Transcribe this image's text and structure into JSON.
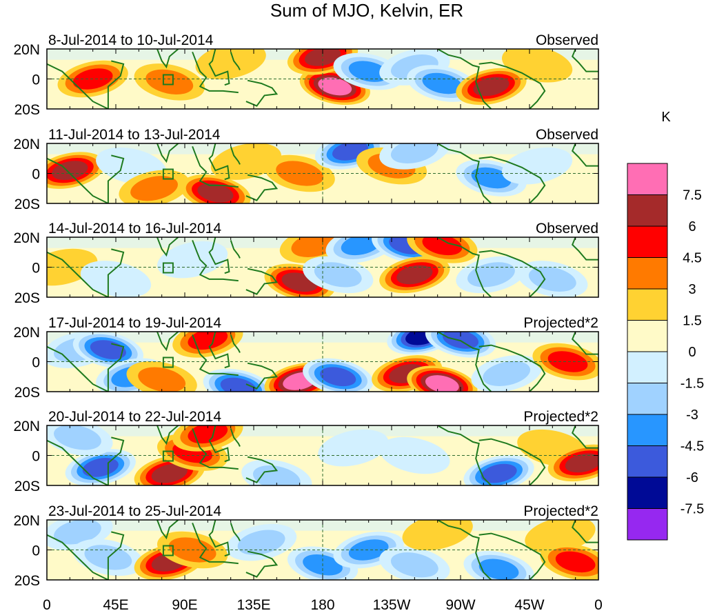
{
  "chart_data": {
    "type": "heatmap",
    "title": "Sum of MJO, Kelvin, ER",
    "units": "K",
    "xlabel": "",
    "ylabel": "",
    "x_ticks": [
      "0",
      "45E",
      "90E",
      "135E",
      "180",
      "135W",
      "90W",
      "45W",
      "0"
    ],
    "y_ticks": [
      "20N",
      "0",
      "20S"
    ],
    "colorbar": {
      "labels": [
        "7.5",
        "6",
        "4.5",
        "3",
        "1.5",
        "0",
        "-1.5",
        "-3",
        "-4.5",
        "-6",
        "-7.5"
      ],
      "colors": [
        "#ff6eb4",
        "#a52a2a",
        "#ff0000",
        "#ff7a00",
        "#ffd232",
        "#fffac8",
        "#d2f0ff",
        "#a0d2ff",
        "#2896ff",
        "#3c5adc",
        "#000a96",
        "#9628f0"
      ]
    },
    "panels": [
      {
        "date_range": "8-Jul-2014 to 10-Jul-2014",
        "label": "Observed",
        "blobs": [
          {
            "lon": 30,
            "lat": 0,
            "value": 4.5
          },
          {
            "lon": 80,
            "lat": -2,
            "value": 3
          },
          {
            "lon": 120,
            "lat": 12,
            "value": 1.5
          },
          {
            "lon": 188,
            "lat": -5,
            "value": 7.5
          },
          {
            "lon": 180,
            "lat": 15,
            "value": 6
          },
          {
            "lon": 210,
            "lat": 5,
            "value": -4.5
          },
          {
            "lon": 240,
            "lat": 8,
            "value": -3
          },
          {
            "lon": 258,
            "lat": -3,
            "value": -4.5
          },
          {
            "lon": 290,
            "lat": -5,
            "value": 6
          },
          {
            "lon": 320,
            "lat": 10,
            "value": 1.5
          }
        ]
      },
      {
        "date_range": "11-Jul-2014 to 13-Jul-2014",
        "label": "Observed",
        "blobs": [
          {
            "lon": 15,
            "lat": 2,
            "value": 6
          },
          {
            "lon": 55,
            "lat": 5,
            "value": -1.5
          },
          {
            "lon": 70,
            "lat": -10,
            "value": 3
          },
          {
            "lon": 110,
            "lat": -13,
            "value": 6
          },
          {
            "lon": 130,
            "lat": 8,
            "value": 1.5
          },
          {
            "lon": 165,
            "lat": 0,
            "value": 3
          },
          {
            "lon": 198,
            "lat": 15,
            "value": -6
          },
          {
            "lon": 225,
            "lat": 5,
            "value": 3
          },
          {
            "lon": 240,
            "lat": 15,
            "value": -3
          },
          {
            "lon": 290,
            "lat": -3,
            "value": -4.5
          },
          {
            "lon": 320,
            "lat": 5,
            "value": -1.5
          }
        ]
      },
      {
        "date_range": "14-Jul-2014 to 16-Jul-2014",
        "label": "Observed",
        "blobs": [
          {
            "lon": 10,
            "lat": 0,
            "value": 1.5
          },
          {
            "lon": 45,
            "lat": -8,
            "value": -1.5
          },
          {
            "lon": 95,
            "lat": 5,
            "value": -1.5
          },
          {
            "lon": 165,
            "lat": -10,
            "value": 6
          },
          {
            "lon": 175,
            "lat": 15,
            "value": 3
          },
          {
            "lon": 190,
            "lat": -5,
            "value": -3
          },
          {
            "lon": 205,
            "lat": 15,
            "value": -4.5
          },
          {
            "lon": 235,
            "lat": 15,
            "value": -6
          },
          {
            "lon": 240,
            "lat": -5,
            "value": 6
          },
          {
            "lon": 258,
            "lat": 15,
            "value": 4.5
          },
          {
            "lon": 290,
            "lat": -5,
            "value": -3
          },
          {
            "lon": 330,
            "lat": -8,
            "value": -3
          }
        ]
      },
      {
        "date_range": "17-Jul-2014 to 19-Jul-2014",
        "label": "Projected*2",
        "blobs": [
          {
            "lon": 20,
            "lat": 8,
            "value": -3
          },
          {
            "lon": 40,
            "lat": 8,
            "value": -6
          },
          {
            "lon": 55,
            "lat": -10,
            "value": -4.5
          },
          {
            "lon": 75,
            "lat": -12,
            "value": 3
          },
          {
            "lon": 105,
            "lat": 15,
            "value": 4.5
          },
          {
            "lon": 125,
            "lat": -17,
            "value": -6
          },
          {
            "lon": 165,
            "lat": -13,
            "value": 7.5
          },
          {
            "lon": 190,
            "lat": -10,
            "value": -6
          },
          {
            "lon": 235,
            "lat": -8,
            "value": 6
          },
          {
            "lon": 258,
            "lat": -15,
            "value": 7.5
          },
          {
            "lon": 245,
            "lat": 17,
            "value": -7.5
          },
          {
            "lon": 270,
            "lat": 15,
            "value": -6
          },
          {
            "lon": 300,
            "lat": -8,
            "value": -3
          },
          {
            "lon": 340,
            "lat": 0,
            "value": 4.5
          }
        ]
      },
      {
        "date_range": "20-Jul-2014 to 22-Jul-2014",
        "label": "Projected*2",
        "blobs": [
          {
            "lon": 35,
            "lat": -8,
            "value": -6
          },
          {
            "lon": 20,
            "lat": 12,
            "value": -3
          },
          {
            "lon": 80,
            "lat": -12,
            "value": 6
          },
          {
            "lon": 95,
            "lat": 2,
            "value": 4.5
          },
          {
            "lon": 105,
            "lat": 15,
            "value": 4.5
          },
          {
            "lon": 150,
            "lat": -15,
            "value": -3
          },
          {
            "lon": 200,
            "lat": 5,
            "value": -1.5
          },
          {
            "lon": 240,
            "lat": 0,
            "value": -1.5
          },
          {
            "lon": 295,
            "lat": -12,
            "value": -6
          },
          {
            "lon": 330,
            "lat": 5,
            "value": 1.5
          },
          {
            "lon": 350,
            "lat": -5,
            "value": 6
          }
        ]
      },
      {
        "date_range": "23-Jul-2014 to 25-Jul-2014",
        "label": "Projected*2",
        "blobs": [
          {
            "lon": 20,
            "lat": 12,
            "value": -3
          },
          {
            "lon": 40,
            "lat": -5,
            "value": -3
          },
          {
            "lon": 80,
            "lat": -8,
            "value": 6
          },
          {
            "lon": 95,
            "lat": 0,
            "value": 3
          },
          {
            "lon": 140,
            "lat": 5,
            "value": -3
          },
          {
            "lon": 180,
            "lat": -10,
            "value": -4.5
          },
          {
            "lon": 210,
            "lat": 0,
            "value": -4.5
          },
          {
            "lon": 240,
            "lat": -10,
            "value": -3
          },
          {
            "lon": 255,
            "lat": 12,
            "value": 1.5
          },
          {
            "lon": 295,
            "lat": -13,
            "value": -4.5
          },
          {
            "lon": 335,
            "lat": 10,
            "value": 1.5
          },
          {
            "lon": 345,
            "lat": -8,
            "value": 4.5
          }
        ]
      }
    ]
  }
}
